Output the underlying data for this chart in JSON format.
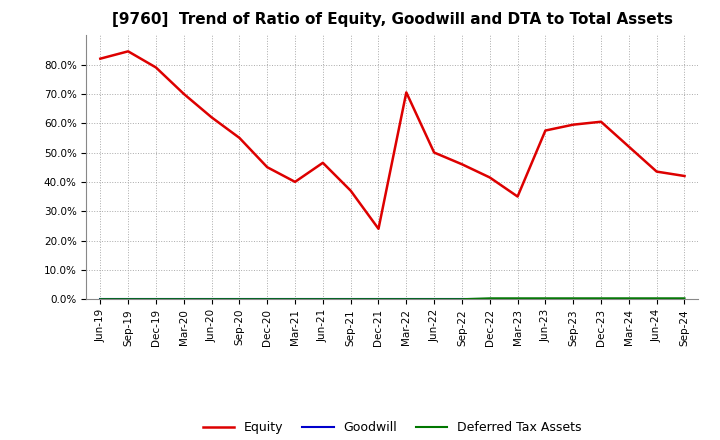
{
  "title": "[9760]  Trend of Ratio of Equity, Goodwill and DTA to Total Assets",
  "x_labels": [
    "Jun-19",
    "Sep-19",
    "Dec-19",
    "Mar-20",
    "Jun-20",
    "Sep-20",
    "Dec-20",
    "Mar-21",
    "Jun-21",
    "Sep-21",
    "Dec-21",
    "Mar-22",
    "Jun-22",
    "Sep-22",
    "Dec-22",
    "Mar-23",
    "Jun-23",
    "Sep-23",
    "Dec-23",
    "Mar-24",
    "Jun-24",
    "Sep-24"
  ],
  "equity": [
    82.0,
    84.5,
    79.0,
    70.0,
    62.0,
    55.0,
    45.0,
    40.0,
    46.5,
    37.0,
    24.0,
    70.5,
    50.0,
    46.0,
    41.5,
    35.0,
    57.5,
    59.5,
    60.5,
    52.0,
    43.5,
    42.0
  ],
  "goodwill": [
    0.0,
    0.0,
    0.0,
    0.0,
    0.0,
    0.0,
    0.0,
    0.0,
    0.0,
    0.0,
    0.0,
    0.0,
    0.0,
    0.0,
    0.0,
    0.0,
    0.0,
    0.0,
    0.0,
    0.0,
    0.0,
    0.0
  ],
  "dta": [
    0.0,
    0.0,
    0.0,
    0.0,
    0.0,
    0.0,
    0.0,
    0.0,
    0.0,
    0.0,
    0.0,
    0.0,
    0.0,
    0.0,
    0.3,
    0.3,
    0.3,
    0.3,
    0.3,
    0.3,
    0.3,
    0.3
  ],
  "equity_color": "#dd0000",
  "goodwill_color": "#0000cc",
  "dta_color": "#007700",
  "background_color": "#ffffff",
  "grid_color": "#aaaaaa",
  "ylim_max": 90.0,
  "ytick_values": [
    0.0,
    10.0,
    20.0,
    30.0,
    40.0,
    50.0,
    60.0,
    70.0,
    80.0
  ],
  "legend_labels": [
    "Equity",
    "Goodwill",
    "Deferred Tax Assets"
  ],
  "title_fontsize": 11,
  "tick_fontsize": 7.5
}
